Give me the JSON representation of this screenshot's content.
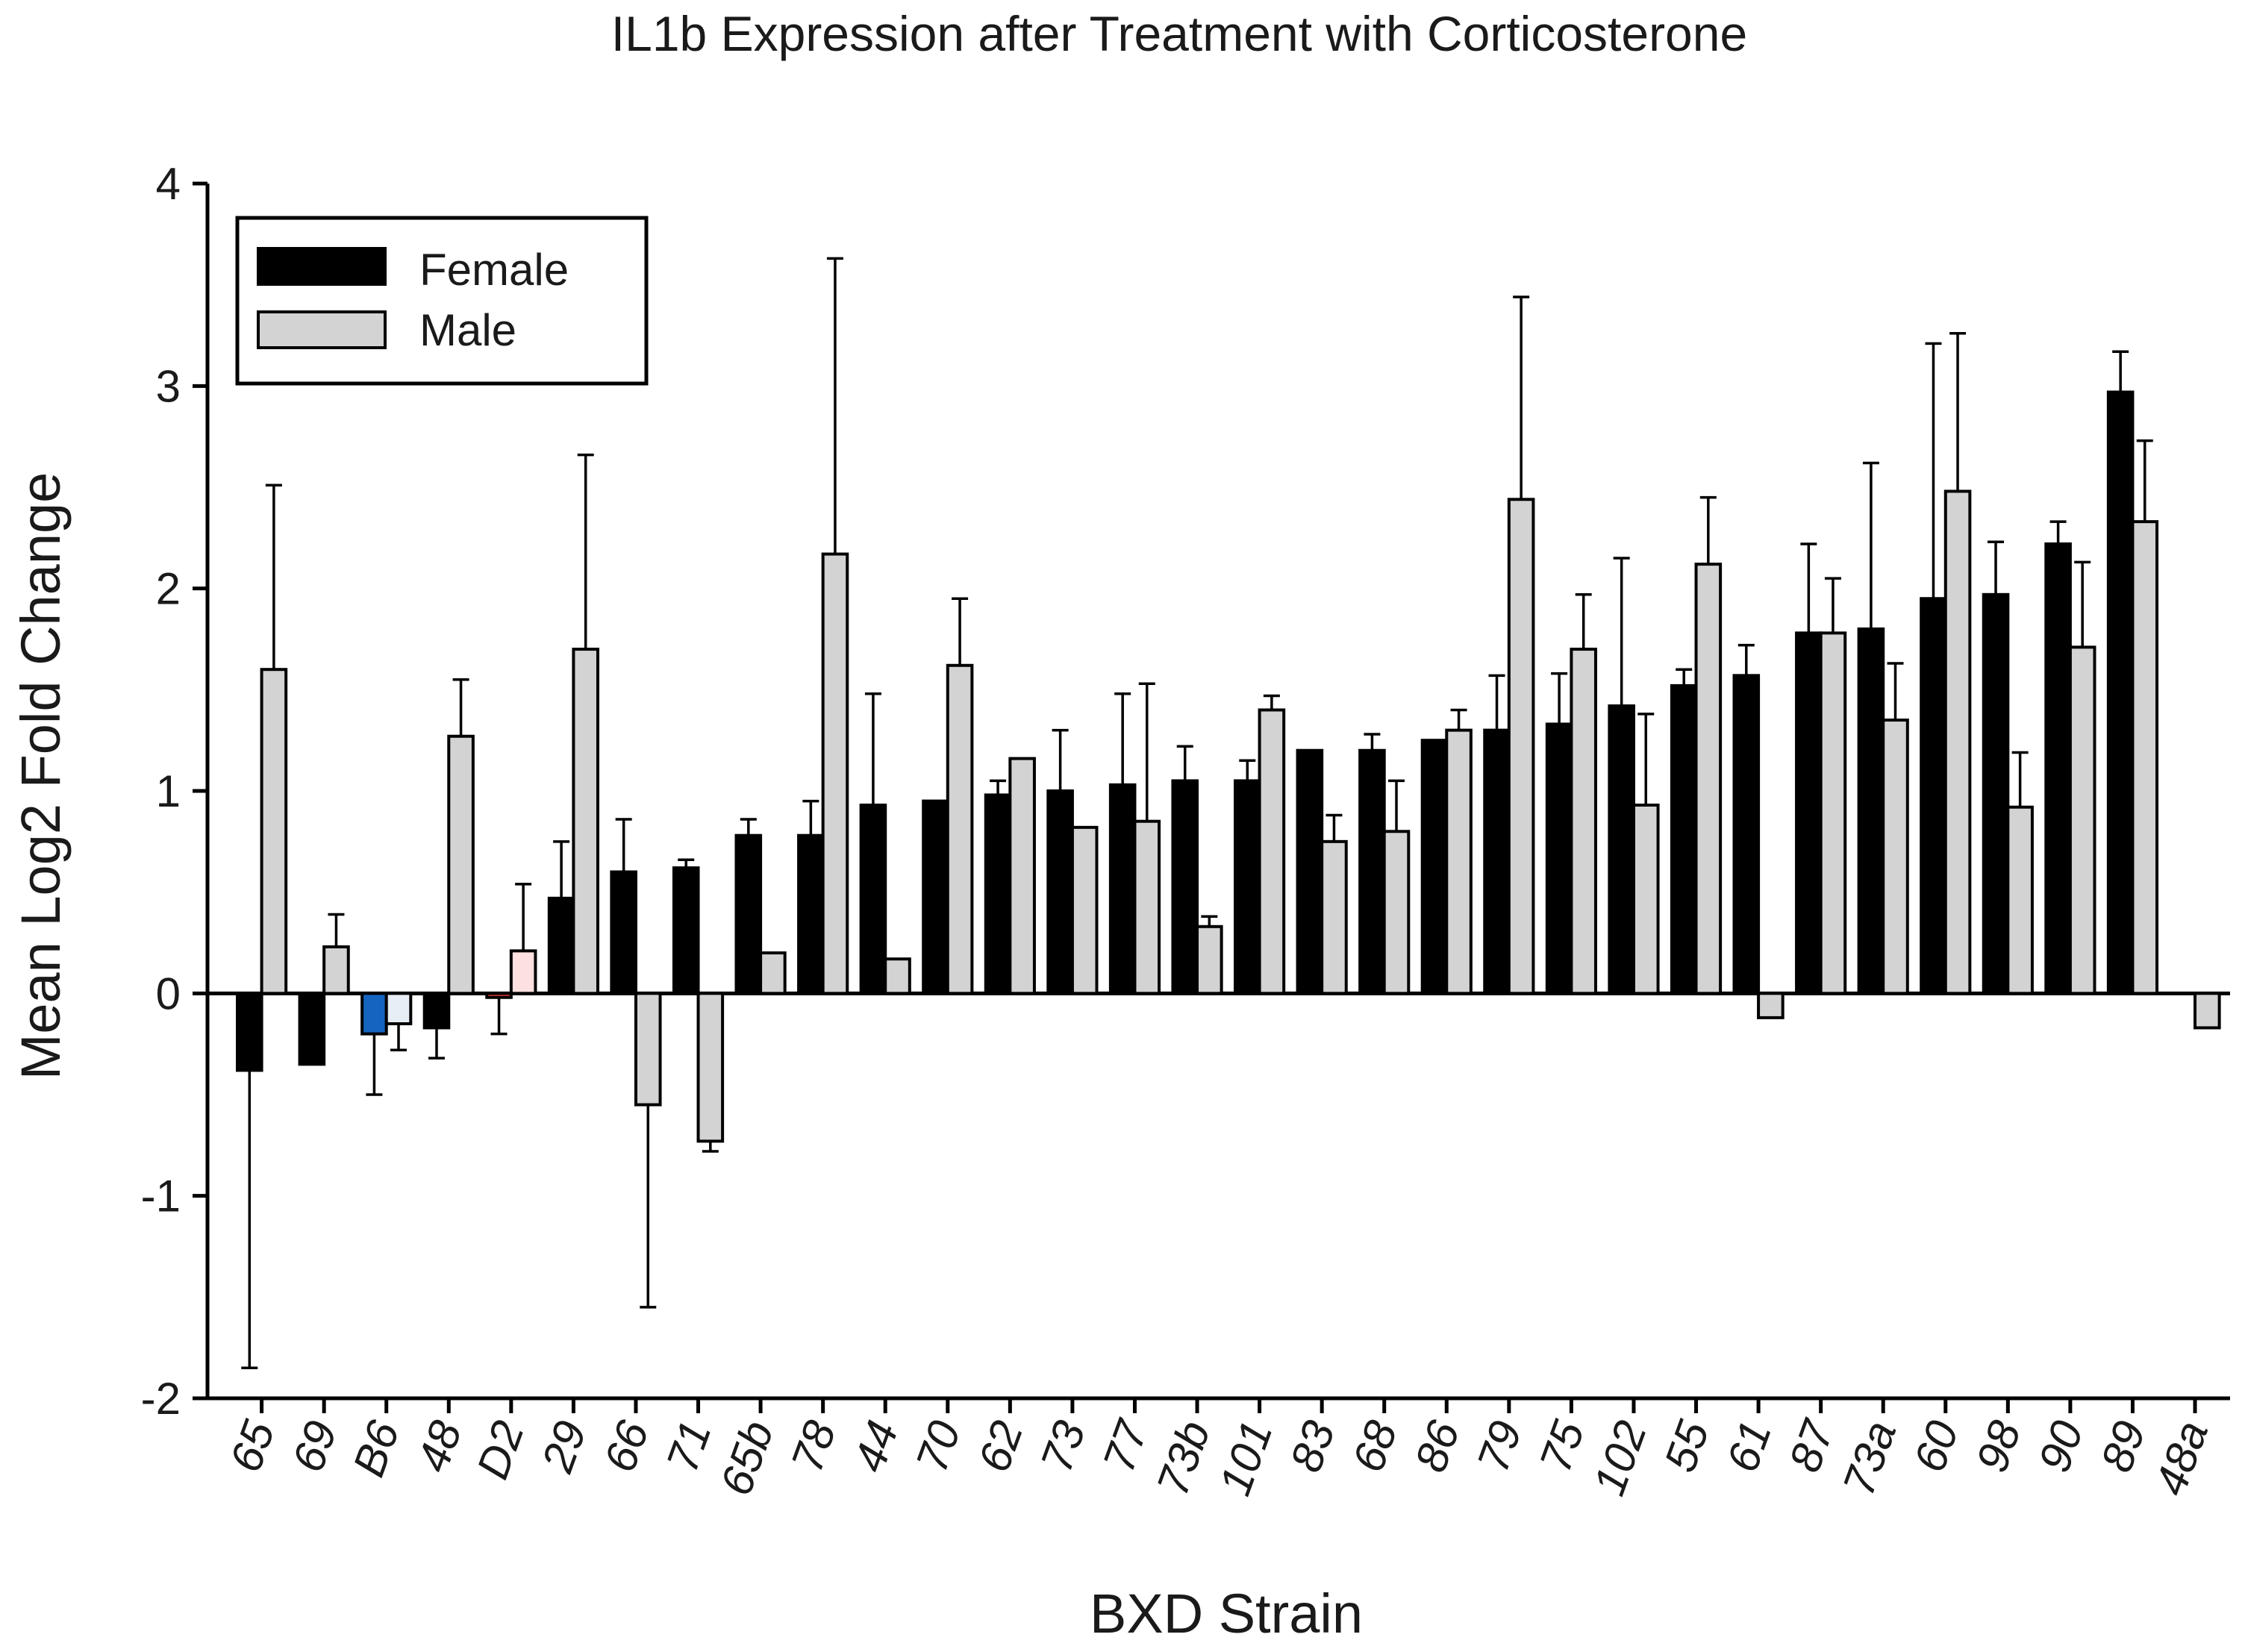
{
  "chart_data": {
    "type": "bar",
    "title": "IL1b Expression after Treatment with Corticosterone",
    "xlabel": "BXD Strain",
    "ylabel": "Mean Log2 Fold Change",
    "ylim": [
      -2,
      4
    ],
    "yticks": [
      -2,
      -1,
      0,
      1,
      2,
      3,
      4
    ],
    "legend": {
      "position": "top-left",
      "entries": [
        "Female",
        "Male"
      ]
    },
    "categories": [
      "65",
      "69",
      "B6",
      "48",
      "D2",
      "29",
      "66",
      "71",
      "65b",
      "78",
      "44",
      "70",
      "62",
      "73",
      "77",
      "73b",
      "101",
      "83",
      "68",
      "86",
      "79",
      "75",
      "102",
      "55",
      "61",
      "87",
      "73a",
      "60",
      "98",
      "90",
      "89",
      "48a"
    ],
    "series": [
      {
        "name": "Female",
        "color": "#000000",
        "values": [
          -0.38,
          -0.35,
          -0.2,
          -0.17,
          -0.02,
          0.47,
          0.6,
          0.62,
          0.78,
          0.78,
          0.93,
          0.95,
          0.98,
          1.0,
          1.03,
          1.05,
          1.05,
          1.2,
          1.2,
          1.25,
          1.3,
          1.33,
          1.42,
          1.52,
          1.57,
          1.78,
          1.8,
          1.95,
          1.97,
          2.22,
          2.97,
          null
        ],
        "errors": [
          1.47,
          null,
          0.3,
          0.15,
          0.18,
          0.28,
          0.26,
          0.04,
          0.08,
          0.17,
          0.55,
          null,
          0.07,
          0.3,
          0.45,
          0.17,
          0.1,
          null,
          0.08,
          null,
          0.27,
          0.25,
          0.73,
          0.08,
          0.15,
          0.44,
          0.82,
          1.26,
          0.26,
          0.11,
          0.2,
          null
        ],
        "bar_colors": [
          "#000000",
          "#000000",
          "#1565c0",
          "#000000",
          "#e53935",
          "#000000",
          "#000000",
          "#000000",
          "#000000",
          "#000000",
          "#000000",
          "#000000",
          "#000000",
          "#000000",
          "#000000",
          "#000000",
          "#000000",
          "#000000",
          "#000000",
          "#000000",
          "#000000",
          "#000000",
          "#000000",
          "#000000",
          "#000000",
          "#000000",
          "#000000",
          "#000000",
          "#000000",
          "#000000",
          "#000000",
          "#000000"
        ]
      },
      {
        "name": "Male",
        "color": "#d3d3d3",
        "values": [
          1.6,
          0.23,
          -0.15,
          1.27,
          0.21,
          1.7,
          -0.55,
          -0.73,
          0.2,
          2.17,
          0.17,
          1.62,
          1.16,
          0.82,
          0.85,
          0.33,
          1.4,
          0.75,
          0.8,
          1.3,
          2.44,
          1.7,
          0.93,
          2.12,
          -0.12,
          1.78,
          1.35,
          2.48,
          0.92,
          1.71,
          2.33,
          -0.17
        ],
        "errors": [
          0.91,
          0.16,
          0.13,
          0.28,
          0.33,
          0.96,
          1.0,
          0.05,
          null,
          1.46,
          null,
          0.33,
          null,
          null,
          0.68,
          0.05,
          0.07,
          0.13,
          0.25,
          0.1,
          1.0,
          0.27,
          0.45,
          0.33,
          null,
          0.27,
          0.28,
          0.78,
          0.27,
          0.42,
          0.4,
          null
        ],
        "bar_colors": [
          "#d3d3d3",
          "#d3d3d3",
          "#e8eef5",
          "#d3d3d3",
          "#fde0e0",
          "#d3d3d3",
          "#d3d3d3",
          "#d3d3d3",
          "#d3d3d3",
          "#d3d3d3",
          "#d3d3d3",
          "#d3d3d3",
          "#d3d3d3",
          "#d3d3d3",
          "#d3d3d3",
          "#d3d3d3",
          "#d3d3d3",
          "#d3d3d3",
          "#d3d3d3",
          "#d3d3d3",
          "#d3d3d3",
          "#d3d3d3",
          "#d3d3d3",
          "#d3d3d3",
          "#d3d3d3",
          "#d3d3d3",
          "#d3d3d3",
          "#d3d3d3",
          "#d3d3d3",
          "#d3d3d3",
          "#d3d3d3",
          "#d3d3d3"
        ]
      }
    ]
  }
}
